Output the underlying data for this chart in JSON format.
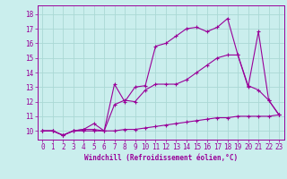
{
  "title": "",
  "xlabel": "Windchill (Refroidissement éolien,°C)",
  "ylabel": "",
  "background_color": "#caeeed",
  "grid_color": "#aad8d5",
  "line_color": "#990099",
  "xlim": [
    -0.5,
    23.5
  ],
  "ylim": [
    9.4,
    18.6
  ],
  "xticks": [
    0,
    1,
    2,
    3,
    4,
    5,
    6,
    7,
    8,
    9,
    10,
    11,
    12,
    13,
    14,
    15,
    16,
    17,
    18,
    19,
    20,
    21,
    22,
    23
  ],
  "yticks": [
    10,
    11,
    12,
    13,
    14,
    15,
    16,
    17,
    18
  ],
  "line1_x": [
    0,
    1,
    2,
    3,
    4,
    5,
    6,
    7,
    8,
    9,
    10,
    11,
    12,
    13,
    14,
    15,
    16,
    17,
    18,
    19,
    20,
    21,
    22,
    23
  ],
  "line1_y": [
    10.0,
    10.0,
    9.7,
    10.0,
    10.1,
    10.1,
    10.0,
    13.2,
    12.0,
    13.0,
    13.1,
    15.8,
    16.0,
    16.5,
    17.0,
    17.1,
    16.8,
    17.1,
    17.7,
    15.2,
    13.0,
    16.8,
    12.1,
    11.1
  ],
  "line2_x": [
    0,
    1,
    2,
    3,
    4,
    5,
    6,
    7,
    8,
    9,
    10,
    11,
    12,
    13,
    14,
    15,
    16,
    17,
    18,
    19,
    20,
    21,
    22,
    23
  ],
  "line2_y": [
    10.0,
    10.0,
    9.7,
    10.0,
    10.1,
    10.5,
    10.0,
    11.8,
    12.1,
    12.0,
    12.8,
    13.2,
    13.2,
    13.2,
    13.5,
    14.0,
    14.5,
    15.0,
    15.2,
    15.2,
    13.1,
    12.8,
    12.1,
    11.1
  ],
  "line3_x": [
    0,
    1,
    2,
    3,
    4,
    5,
    6,
    7,
    8,
    9,
    10,
    11,
    12,
    13,
    14,
    15,
    16,
    17,
    18,
    19,
    20,
    21,
    22,
    23
  ],
  "line3_y": [
    10.0,
    10.0,
    9.7,
    10.0,
    10.0,
    10.0,
    10.0,
    10.0,
    10.1,
    10.1,
    10.2,
    10.3,
    10.4,
    10.5,
    10.6,
    10.7,
    10.8,
    10.9,
    10.9,
    11.0,
    11.0,
    11.0,
    11.0,
    11.1
  ],
  "tick_fontsize": 5.5,
  "xlabel_fontsize": 5.5,
  "lw": 0.8,
  "ms": 2.5
}
